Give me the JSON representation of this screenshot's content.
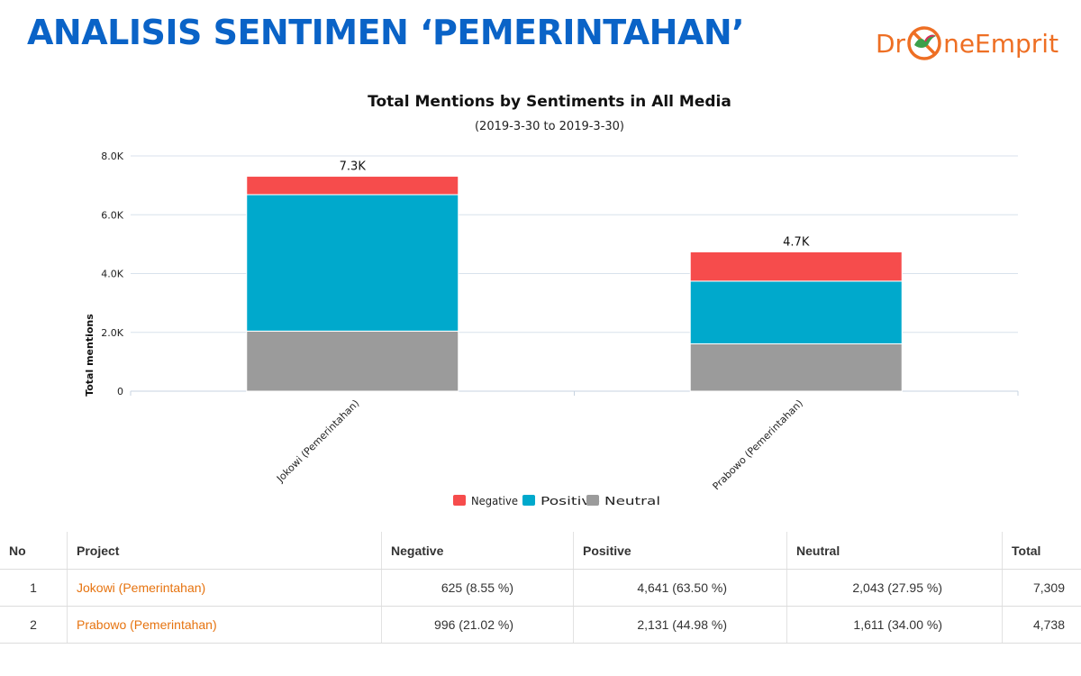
{
  "page": {
    "title": "ANALISIS SENTIMEN ‘PEMERINTAHAN’",
    "logo_text_left": "Dr",
    "logo_text_right": "neEmprit",
    "logo_icon": "drone-bird-icon"
  },
  "colors": {
    "title": "#0a63c7",
    "negative": "#f64c4c",
    "positive": "#00a9cc",
    "neutral": "#9b9b9b",
    "link": "#e6730f",
    "logo": "#ee6f24"
  },
  "chart_data": {
    "type": "bar",
    "stacked": true,
    "title": "Total Mentions by Sentiments in All Media",
    "subtitle": "(2019-3-30 to 2019-3-30)",
    "xlabel": "",
    "ylabel": "Total mentions",
    "ylim": [
      0,
      8000
    ],
    "yticks": [
      "0",
      "2.0K",
      "4.0K",
      "6.0K",
      "8.0K"
    ],
    "categories": [
      "Jokowi (Pemerintahan)",
      "Prabowo (Pemerintahan)"
    ],
    "series": [
      {
        "name": "Neutral",
        "values": [
          2043,
          1611
        ]
      },
      {
        "name": "Positive",
        "values": [
          4641,
          2131
        ]
      },
      {
        "name": "Negative",
        "values": [
          625,
          996
        ]
      }
    ],
    "totals_labels": [
      "7.3K",
      "4.7K"
    ],
    "legend": [
      "Negative",
      "Positive",
      "Neutral"
    ],
    "legend_position": "bottom-center",
    "grid": true
  },
  "table": {
    "headers": [
      "No",
      "Project",
      "Negative",
      "Positive",
      "Neutral",
      "Total"
    ],
    "rows": [
      {
        "no": "1",
        "project": "Jokowi (Pemerintahan)",
        "negative": "625 (8.55 %)",
        "positive": "4,641 (63.50 %)",
        "neutral": "2,043 (27.95 %)",
        "total": "7,309"
      },
      {
        "no": "2",
        "project": "Prabowo (Pemerintahan)",
        "negative": "996 (21.02 %)",
        "positive": "2,131 (44.98 %)",
        "neutral": "1,611 (34.00 %)",
        "total": "4,738"
      }
    ]
  }
}
